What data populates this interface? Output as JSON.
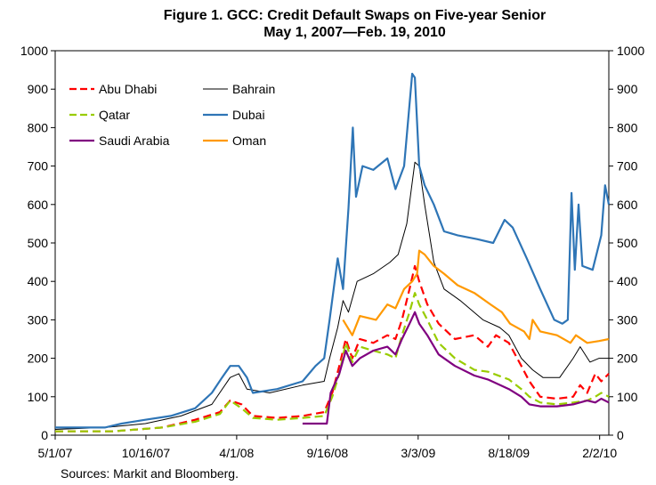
{
  "chart_data": {
    "type": "line",
    "title": "Figure 1. GCC: Credit Default Swaps on Five-year Senior",
    "subtitle": "May 1, 2007—Feb. 19, 2010",
    "source": "Sources: Markit and Bloomberg.",
    "x_tick_labels": [
      "5/1/07",
      "10/16/07",
      "4/1/08",
      "9/16/08",
      "3/3/09",
      "8/18/09",
      "2/2/10"
    ],
    "x_tick_dates": [
      "2007-05-01",
      "2007-10-16",
      "2008-04-01",
      "2008-09-16",
      "2009-03-03",
      "2009-08-18",
      "2010-02-02"
    ],
    "xlim": [
      "2007-05-01",
      "2010-02-19"
    ],
    "ylim": [
      0,
      1000
    ],
    "y_ticks": [
      0,
      100,
      200,
      300,
      400,
      500,
      600,
      700,
      800,
      900,
      1000
    ],
    "secondary_axis": true,
    "grid": false,
    "legend_placement": "top-left",
    "series": [
      {
        "name": "Abu Dhabi",
        "color": "#ff0000",
        "style": "dashed",
        "legend_col": 0,
        "legend_row": 0,
        "points": [
          [
            "2007-05-01",
            10
          ],
          [
            "2007-08-15",
            10
          ],
          [
            "2007-11-15",
            20
          ],
          [
            "2008-01-15",
            40
          ],
          [
            "2008-03-01",
            60
          ],
          [
            "2008-03-20",
            90
          ],
          [
            "2008-04-10",
            80
          ],
          [
            "2008-05-01",
            50
          ],
          [
            "2008-06-15",
            45
          ],
          [
            "2008-08-01",
            50
          ],
          [
            "2008-09-10",
            60
          ],
          [
            "2008-09-25",
            110
          ],
          [
            "2008-10-08",
            180
          ],
          [
            "2008-10-20",
            250
          ],
          [
            "2008-11-01",
            200
          ],
          [
            "2008-11-15",
            250
          ],
          [
            "2008-12-10",
            240
          ],
          [
            "2009-01-05",
            260
          ],
          [
            "2009-01-20",
            250
          ],
          [
            "2009-02-01",
            300
          ],
          [
            "2009-02-15",
            380
          ],
          [
            "2009-02-25",
            440
          ],
          [
            "2009-03-05",
            400
          ],
          [
            "2009-03-20",
            340
          ],
          [
            "2009-04-10",
            290
          ],
          [
            "2009-05-10",
            250
          ],
          [
            "2009-06-15",
            260
          ],
          [
            "2009-07-10",
            230
          ],
          [
            "2009-07-25",
            260
          ],
          [
            "2009-08-18",
            240
          ],
          [
            "2009-09-10",
            180
          ],
          [
            "2009-09-25",
            140
          ],
          [
            "2009-10-15",
            100
          ],
          [
            "2009-11-15",
            95
          ],
          [
            "2009-12-15",
            100
          ],
          [
            "2009-12-28",
            130
          ],
          [
            "2010-01-10",
            110
          ],
          [
            "2010-01-25",
            160
          ],
          [
            "2010-02-05",
            140
          ],
          [
            "2010-02-19",
            160
          ]
        ]
      },
      {
        "name": "Bahrain",
        "color": "#000000",
        "style": "solid",
        "thin": true,
        "legend_col": 1,
        "legend_row": 0,
        "points": [
          [
            "2007-05-01",
            15
          ],
          [
            "2007-08-01",
            20
          ],
          [
            "2007-10-15",
            30
          ],
          [
            "2007-12-20",
            50
          ],
          [
            "2008-02-15",
            80
          ],
          [
            "2008-03-20",
            150
          ],
          [
            "2008-04-05",
            160
          ],
          [
            "2008-04-20",
            120
          ],
          [
            "2008-06-01",
            110
          ],
          [
            "2008-08-01",
            130
          ],
          [
            "2008-09-10",
            140
          ],
          [
            "2008-09-20",
            200
          ],
          [
            "2008-10-05",
            280
          ],
          [
            "2008-10-15",
            350
          ],
          [
            "2008-10-25",
            320
          ],
          [
            "2008-11-10",
            400
          ],
          [
            "2008-12-10",
            420
          ],
          [
            "2009-01-10",
            450
          ],
          [
            "2009-01-25",
            470
          ],
          [
            "2009-02-10",
            550
          ],
          [
            "2009-02-25",
            710
          ],
          [
            "2009-03-05",
            700
          ],
          [
            "2009-03-15",
            600
          ],
          [
            "2009-04-01",
            450
          ],
          [
            "2009-04-20",
            380
          ],
          [
            "2009-05-20",
            350
          ],
          [
            "2009-07-01",
            300
          ],
          [
            "2009-08-01",
            280
          ],
          [
            "2009-08-18",
            260
          ],
          [
            "2009-09-10",
            200
          ],
          [
            "2009-10-01",
            170
          ],
          [
            "2009-10-20",
            150
          ],
          [
            "2009-11-20",
            150
          ],
          [
            "2009-12-15",
            200
          ],
          [
            "2009-12-28",
            230
          ],
          [
            "2010-01-15",
            190
          ],
          [
            "2010-02-01",
            200
          ],
          [
            "2010-02-19",
            200
          ]
        ]
      },
      {
        "name": "Qatar",
        "color": "#99cc00",
        "style": "dashed",
        "legend_col": 0,
        "legend_row": 1,
        "points": [
          [
            "2007-05-01",
            10
          ],
          [
            "2007-08-15",
            10
          ],
          [
            "2007-11-15",
            20
          ],
          [
            "2008-01-15",
            35
          ],
          [
            "2008-03-01",
            55
          ],
          [
            "2008-03-20",
            90
          ],
          [
            "2008-04-10",
            70
          ],
          [
            "2008-05-01",
            45
          ],
          [
            "2008-06-15",
            40
          ],
          [
            "2008-08-01",
            45
          ],
          [
            "2008-09-10",
            50
          ],
          [
            "2008-09-25",
            100
          ],
          [
            "2008-10-08",
            160
          ],
          [
            "2008-10-20",
            240
          ],
          [
            "2008-11-01",
            190
          ],
          [
            "2008-11-15",
            230
          ],
          [
            "2008-12-10",
            220
          ],
          [
            "2009-01-05",
            210
          ],
          [
            "2009-01-20",
            200
          ],
          [
            "2009-02-01",
            260
          ],
          [
            "2009-02-15",
            320
          ],
          [
            "2009-02-25",
            370
          ],
          [
            "2009-03-05",
            340
          ],
          [
            "2009-03-20",
            300
          ],
          [
            "2009-04-10",
            240
          ],
          [
            "2009-05-10",
            200
          ],
          [
            "2009-06-15",
            170
          ],
          [
            "2009-07-10",
            165
          ],
          [
            "2009-08-18",
            145
          ],
          [
            "2009-09-10",
            120
          ],
          [
            "2009-09-25",
            100
          ],
          [
            "2009-10-15",
            85
          ],
          [
            "2009-11-15",
            80
          ],
          [
            "2009-12-15",
            85
          ],
          [
            "2010-01-10",
            90
          ],
          [
            "2010-01-25",
            100
          ],
          [
            "2010-02-05",
            110
          ],
          [
            "2010-02-19",
            100
          ]
        ]
      },
      {
        "name": "Dubai",
        "color": "#2e75b6",
        "style": "solid",
        "legend_col": 1,
        "legend_row": 1,
        "points": [
          [
            "2007-05-01",
            20
          ],
          [
            "2007-08-01",
            20
          ],
          [
            "2007-09-01",
            30
          ],
          [
            "2007-10-15",
            40
          ],
          [
            "2007-12-01",
            50
          ],
          [
            "2008-01-15",
            70
          ],
          [
            "2008-02-15",
            110
          ],
          [
            "2008-03-05",
            150
          ],
          [
            "2008-03-20",
            180
          ],
          [
            "2008-04-05",
            180
          ],
          [
            "2008-04-20",
            150
          ],
          [
            "2008-05-01",
            110
          ],
          [
            "2008-06-15",
            120
          ],
          [
            "2008-08-01",
            140
          ],
          [
            "2008-08-25",
            180
          ],
          [
            "2008-09-10",
            200
          ],
          [
            "2008-09-20",
            300
          ],
          [
            "2008-10-05",
            460
          ],
          [
            "2008-10-15",
            380
          ],
          [
            "2008-10-25",
            590
          ],
          [
            "2008-11-02",
            800
          ],
          [
            "2008-11-08",
            620
          ],
          [
            "2008-11-20",
            700
          ],
          [
            "2008-12-10",
            690
          ],
          [
            "2009-01-05",
            720
          ],
          [
            "2009-01-20",
            640
          ],
          [
            "2009-02-05",
            700
          ],
          [
            "2009-02-20",
            940
          ],
          [
            "2009-02-25",
            930
          ],
          [
            "2009-03-05",
            700
          ],
          [
            "2009-03-15",
            650
          ],
          [
            "2009-04-01",
            600
          ],
          [
            "2009-04-20",
            530
          ],
          [
            "2009-05-15",
            520
          ],
          [
            "2009-06-20",
            510
          ],
          [
            "2009-07-20",
            500
          ],
          [
            "2009-08-10",
            560
          ],
          [
            "2009-08-25",
            540
          ],
          [
            "2009-09-20",
            460
          ],
          [
            "2009-10-15",
            380
          ],
          [
            "2009-11-10",
            300
          ],
          [
            "2009-11-25",
            290
          ],
          [
            "2009-12-05",
            300
          ],
          [
            "2009-12-12",
            630
          ],
          [
            "2009-12-18",
            430
          ],
          [
            "2009-12-25",
            600
          ],
          [
            "2010-01-01",
            440
          ],
          [
            "2010-01-20",
            430
          ],
          [
            "2010-02-05",
            520
          ],
          [
            "2010-02-12",
            650
          ],
          [
            "2010-02-19",
            600
          ]
        ]
      },
      {
        "name": "Saudi Arabia",
        "color": "#800080",
        "style": "solid",
        "legend_col": 0,
        "legend_row": 2,
        "points": [
          [
            "2008-08-01",
            30
          ],
          [
            "2008-09-15",
            30
          ],
          [
            "2008-09-22",
            110
          ],
          [
            "2008-10-08",
            160
          ],
          [
            "2008-10-20",
            220
          ],
          [
            "2008-11-01",
            180
          ],
          [
            "2008-11-15",
            200
          ],
          [
            "2008-12-10",
            220
          ],
          [
            "2009-01-05",
            230
          ],
          [
            "2009-01-20",
            210
          ],
          [
            "2009-02-01",
            250
          ],
          [
            "2009-02-15",
            290
          ],
          [
            "2009-02-25",
            320
          ],
          [
            "2009-03-05",
            290
          ],
          [
            "2009-03-20",
            260
          ],
          [
            "2009-04-10",
            210
          ],
          [
            "2009-05-10",
            180
          ],
          [
            "2009-06-15",
            155
          ],
          [
            "2009-07-10",
            145
          ],
          [
            "2009-08-18",
            120
          ],
          [
            "2009-09-10",
            100
          ],
          [
            "2009-09-25",
            80
          ],
          [
            "2009-10-15",
            75
          ],
          [
            "2009-11-15",
            75
          ],
          [
            "2009-12-15",
            80
          ],
          [
            "2010-01-10",
            90
          ],
          [
            "2010-01-25",
            85
          ],
          [
            "2010-02-05",
            95
          ],
          [
            "2010-02-19",
            85
          ]
        ]
      },
      {
        "name": "Oman",
        "color": "#ff9900",
        "style": "solid",
        "legend_col": 1,
        "legend_row": 2,
        "points": [
          [
            "2008-10-15",
            300
          ],
          [
            "2008-11-01",
            260
          ],
          [
            "2008-11-15",
            310
          ],
          [
            "2008-12-15",
            300
          ],
          [
            "2009-01-05",
            340
          ],
          [
            "2009-01-20",
            330
          ],
          [
            "2009-02-05",
            380
          ],
          [
            "2009-02-20",
            400
          ],
          [
            "2009-03-01",
            420
          ],
          [
            "2009-03-05",
            480
          ],
          [
            "2009-03-15",
            470
          ],
          [
            "2009-04-01",
            440
          ],
          [
            "2009-04-20",
            420
          ],
          [
            "2009-05-15",
            390
          ],
          [
            "2009-06-15",
            370
          ],
          [
            "2009-07-15",
            340
          ],
          [
            "2009-08-05",
            320
          ],
          [
            "2009-08-20",
            290
          ],
          [
            "2009-09-15",
            270
          ],
          [
            "2009-09-25",
            250
          ],
          [
            "2009-10-01",
            300
          ],
          [
            "2009-10-15",
            270
          ],
          [
            "2009-11-15",
            260
          ],
          [
            "2009-12-10",
            240
          ],
          [
            "2009-12-20",
            260
          ],
          [
            "2010-01-10",
            240
          ],
          [
            "2010-02-01",
            245
          ],
          [
            "2010-02-19",
            250
          ]
        ]
      }
    ]
  }
}
